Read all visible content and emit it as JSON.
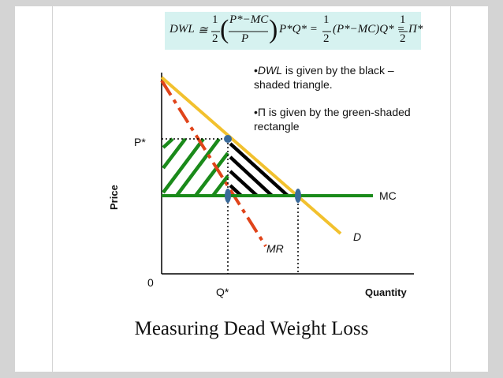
{
  "formula": {
    "lhs": "DWL",
    "approx": "≅",
    "half_num": "1",
    "half_den": "2",
    "frac_num": "P*−MC",
    "frac_den": "P",
    "pq": "P*Q* =",
    "half2_num": "1",
    "half2_den": "2",
    "mid": "(P*−MC)Q* =",
    "half3_num": "1",
    "half3_den": "2",
    "pi": "Π*"
  },
  "notes": {
    "dwl_italic": "DWL",
    "dwl_rest": " is given by the black –shaded triangle.",
    "pi_line": "Π is given by the green-shaded rectangle",
    "bullet": "•"
  },
  "axes": {
    "y_label": "Price",
    "x_label": "Quantity",
    "origin": "0",
    "p_star": "P*",
    "q_star": "Q*"
  },
  "curves": {
    "mc": "MC",
    "d": "D",
    "mr": "MR"
  },
  "title": "Measuring Dead Weight Loss",
  "colors": {
    "demand": "#f2c12e",
    "mc": "#1a8a1a",
    "mr": "#e0441a",
    "hatch_green": "#1a8a1a",
    "hatch_black": "#000000",
    "marker": "#3a6a9a",
    "formula_bg": "#d6f2f0"
  }
}
